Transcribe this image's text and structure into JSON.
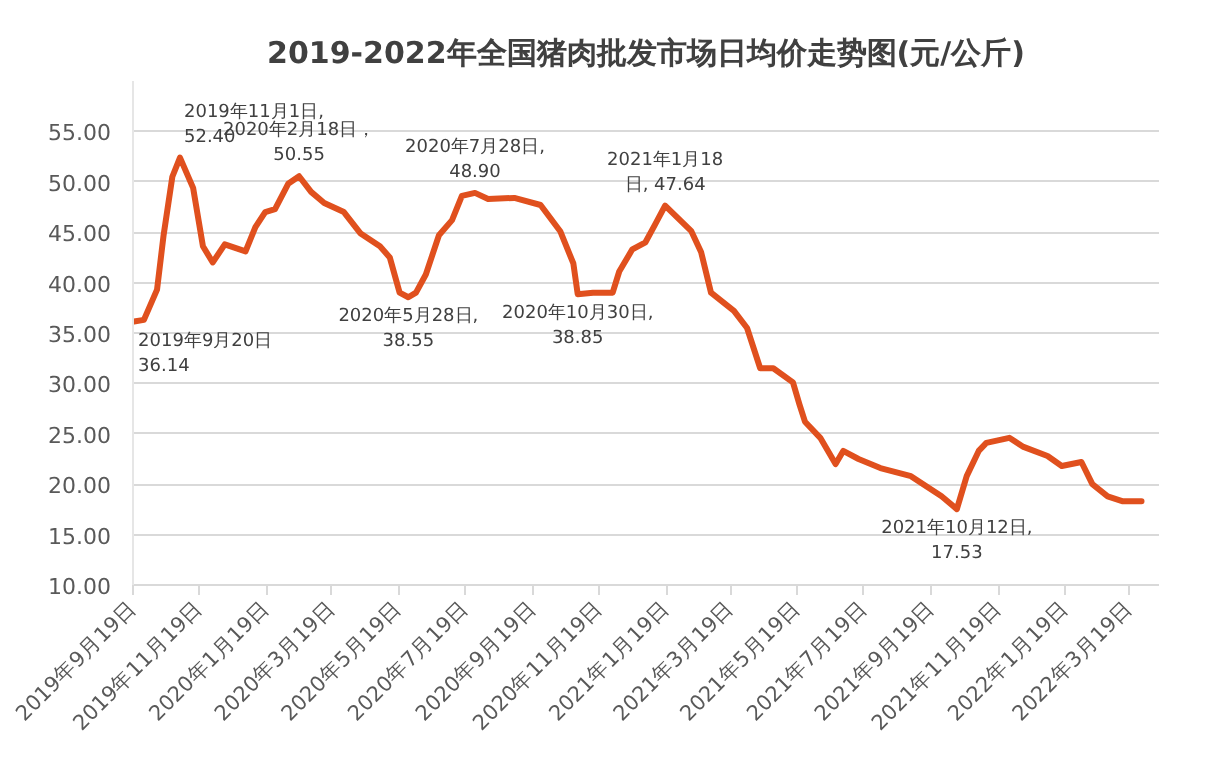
{
  "chart_data": {
    "type": "line",
    "title": "2019-2022年全国猪肉批发市场日均价走势图(元/公斤)",
    "x": [
      "2019-09-20",
      "2019-09-29",
      "2019-10-11",
      "2019-10-17",
      "2019-10-25",
      "2019-11-01",
      "2019-11-13",
      "2019-11-22",
      "2019-12-01",
      "2019-12-12",
      "2019-12-31",
      "2020-01-09",
      "2020-01-18",
      "2020-01-27",
      "2020-02-08",
      "2020-02-18",
      "2020-02-29",
      "2020-03-12",
      "2020-03-30",
      "2020-04-14",
      "2020-05-02",
      "2020-05-11",
      "2020-05-20",
      "2020-05-28",
      "2020-06-04",
      "2020-06-13",
      "2020-06-25",
      "2020-07-07",
      "2020-07-16",
      "2020-07-28",
      "2020-08-09",
      "2020-09-02",
      "2020-09-26",
      "2020-10-14",
      "2020-10-26",
      "2020-10-30",
      "2020-11-13",
      "2020-12-01",
      "2020-12-07",
      "2020-12-19",
      "2020-12-31",
      "2021-01-09",
      "2021-01-18",
      "2021-02-11",
      "2021-02-20",
      "2021-03-01",
      "2021-03-22",
      "2021-04-03",
      "2021-04-15",
      "2021-04-27",
      "2021-05-15",
      "2021-05-21",
      "2021-05-26",
      "2021-06-09",
      "2021-06-23",
      "2021-06-30",
      "2021-07-14",
      "2021-08-03",
      "2021-08-31",
      "2021-09-28",
      "2021-10-12",
      "2021-10-21",
      "2021-11-01",
      "2021-11-08",
      "2021-11-29",
      "2021-12-12",
      "2022-01-03",
      "2022-01-16",
      "2022-02-03",
      "2022-02-13",
      "2022-02-27",
      "2022-03-13",
      "2022-03-30"
    ],
    "series": [
      {
        "color": "#e0501e",
        "values": [
          36.14,
          36.3,
          39.3,
          44.7,
          50.5,
          52.4,
          49.4,
          43.6,
          42.0,
          43.8,
          43.1,
          45.5,
          47.0,
          47.3,
          49.8,
          50.55,
          49.0,
          47.9,
          47.0,
          44.9,
          43.6,
          42.5,
          39.0,
          38.55,
          39.0,
          40.8,
          44.7,
          46.2,
          48.6,
          48.9,
          48.3,
          48.4,
          47.7,
          45.1,
          41.9,
          38.85,
          39.0,
          39.0,
          41.1,
          43.3,
          44.0,
          45.8,
          47.64,
          45.1,
          43.0,
          39.0,
          37.2,
          35.5,
          31.5,
          31.5,
          30.1,
          27.9,
          26.2,
          24.6,
          22.0,
          23.3,
          22.5,
          21.6,
          20.8,
          18.8,
          17.53,
          20.8,
          23.3,
          24.1,
          24.6,
          23.7,
          22.8,
          21.8,
          22.2,
          20.0,
          18.8,
          18.3,
          18.3
        ]
      }
    ],
    "annotations": [
      {
        "text": "2019年9月20日\n36.14",
        "x": "2019-09-20",
        "y": 36.14
      },
      {
        "text": "2019年11月1日,\n52.40",
        "x": "2019-11-01",
        "y": 52.4
      },
      {
        "text": "2020年2月18日，\n50.55",
        "x": "2020-02-18",
        "y": 50.55
      },
      {
        "text": "2020年5月28日,\n38.55",
        "x": "2020-05-28",
        "y": 38.55
      },
      {
        "text": "2020年7月28日,\n48.90",
        "x": "2020-07-28",
        "y": 48.9
      },
      {
        "text": "2020年10月30日,\n38.85",
        "x": "2020-10-30",
        "y": 38.85
      },
      {
        "text": "2021年1月18\n日, 47.64",
        "x": "2021-01-18",
        "y": 47.64
      },
      {
        "text": "2021年10月12日,\n17.53",
        "x": "2021-10-12",
        "y": 17.53
      }
    ],
    "xlim": [
      "2019-09-19",
      "2022-04-15"
    ],
    "xticks": [
      {
        "value": "2019-09-19",
        "label": "2019年9月19日"
      },
      {
        "value": "2019-11-19",
        "label": "2019年11月19日"
      },
      {
        "value": "2020-01-19",
        "label": "2020年1月19日"
      },
      {
        "value": "2020-03-19",
        "label": "2020年3月19日"
      },
      {
        "value": "2020-05-19",
        "label": "2020年5月19日"
      },
      {
        "value": "2020-07-19",
        "label": "2020年7月19日"
      },
      {
        "value": "2020-09-19",
        "label": "2020年9月19日"
      },
      {
        "value": "2020-11-19",
        "label": "2020年11月19日"
      },
      {
        "value": "2021-01-19",
        "label": "2021年1月19日"
      },
      {
        "value": "2021-03-19",
        "label": "2021年3月19日"
      },
      {
        "value": "2021-05-19",
        "label": "2021年5月19日"
      },
      {
        "value": "2021-07-19",
        "label": "2021年7月19日"
      },
      {
        "value": "2021-09-19",
        "label": "2021年9月19日"
      },
      {
        "value": "2021-11-19",
        "label": "2021年11月19日"
      },
      {
        "value": "2022-01-19",
        "label": "2022年1月19日"
      },
      {
        "value": "2022-03-19",
        "label": "2022年3月19日"
      }
    ],
    "ylim": [
      10,
      60
    ],
    "yticks": [
      {
        "value": 10,
        "label": "10.00"
      },
      {
        "value": 15,
        "label": "15.00"
      },
      {
        "value": 20,
        "label": "20.00"
      },
      {
        "value": 25,
        "label": "25.00"
      },
      {
        "value": 30,
        "label": "30.00"
      },
      {
        "value": 35,
        "label": "35.00"
      },
      {
        "value": 40,
        "label": "40.00"
      },
      {
        "value": 45,
        "label": "45.00"
      },
      {
        "value": 50,
        "label": "50.00"
      },
      {
        "value": 55,
        "label": "55.00"
      }
    ],
    "grid": "y",
    "marker": "none",
    "line_style": "solid"
  }
}
